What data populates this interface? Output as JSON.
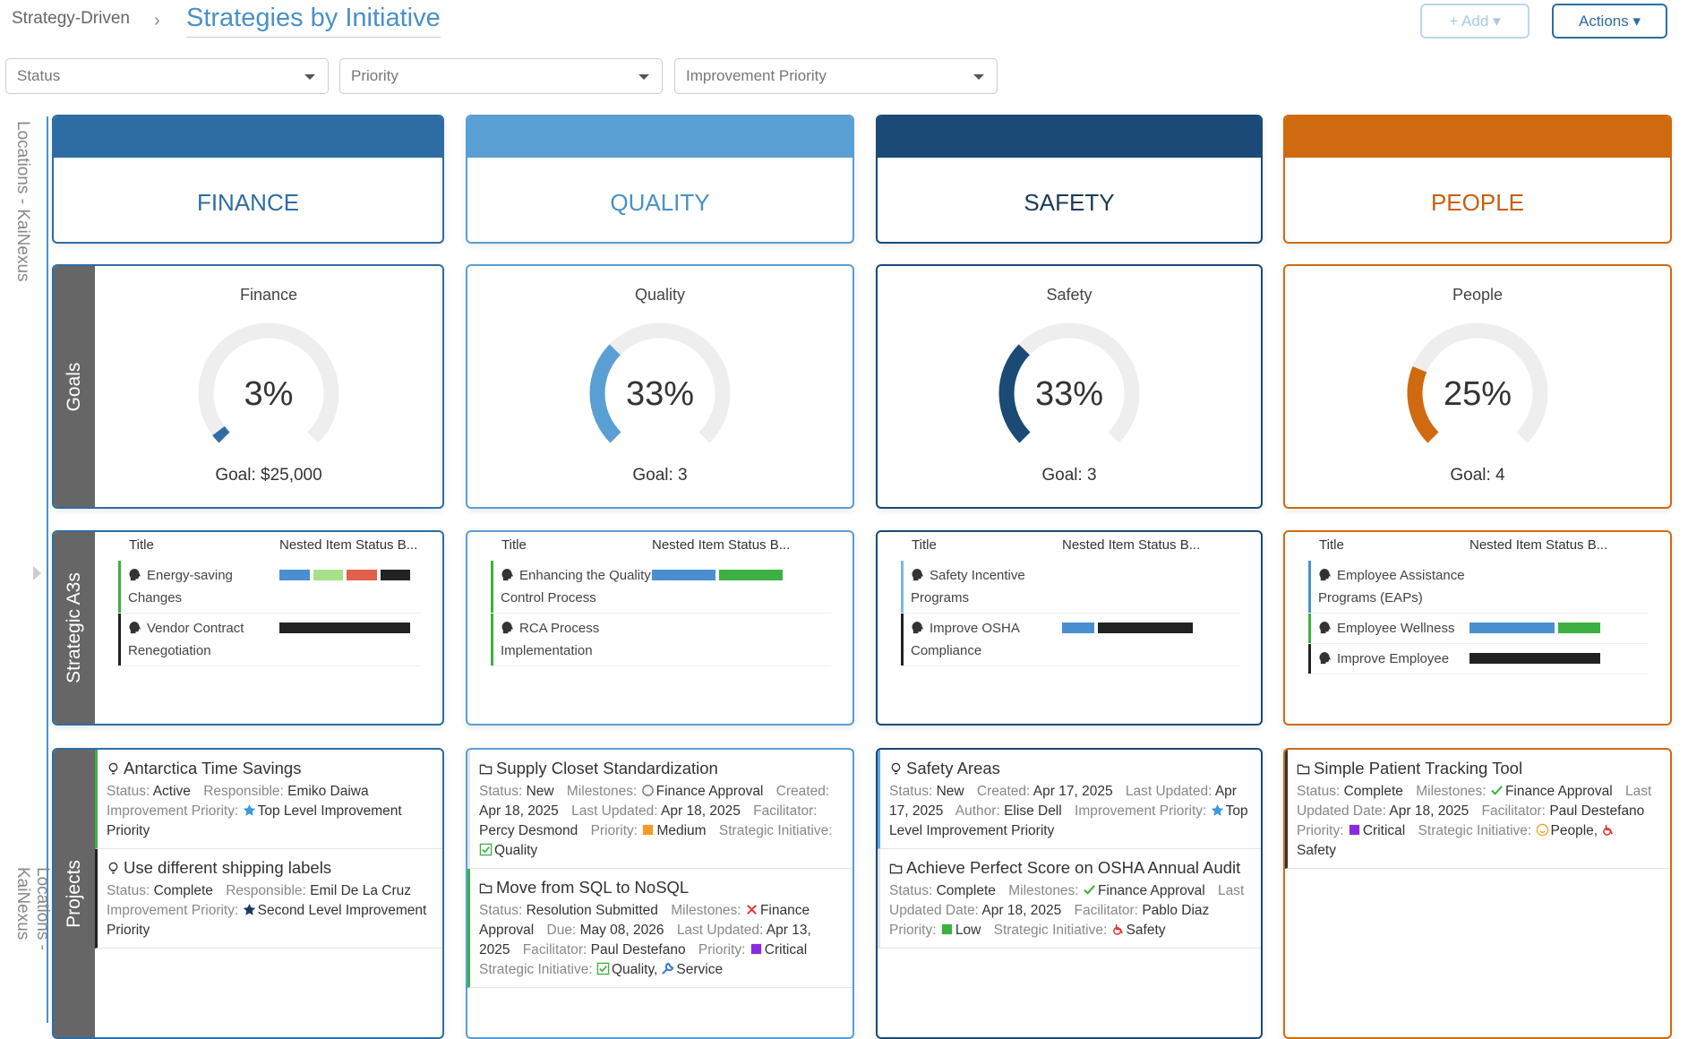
{
  "header": {
    "breadcrumb": "Strategy-Driven",
    "title": "Strategies by Initiative",
    "buttons": [
      "Add",
      "Actions"
    ]
  },
  "filters": [
    "Status",
    "Priority",
    "Improvement Priority"
  ],
  "side_label": "Locations - KaiNexus",
  "row_labels": [
    "Goals",
    "Strategic A3s",
    "Projects"
  ],
  "a3_headers": [
    "Title",
    "Nested Item Status B..."
  ],
  "columns": [
    {
      "name": "FINANCE",
      "color": "#2e6da4",
      "text_color": "#2e6da4",
      "goal": {
        "title": "Finance",
        "value": 3,
        "value_label": "3%",
        "goal": "Goal: $25,000"
      },
      "a3s": [
        {
          "title": "Energy-saving Changes",
          "border": "#3cb043",
          "segments": [
            {
              "color": "#4a90d0",
              "count": 1
            },
            {
              "color": "#a6e08a",
              "count": 1
            },
            {
              "color": "#e0604a",
              "count": 1
            },
            {
              "color": "#222222",
              "count": 1
            }
          ]
        },
        {
          "title": "Vendor Contract Renegotiation",
          "border": "#222222",
          "segments": [
            {
              "color": "#222222",
              "count": 1
            }
          ]
        }
      ],
      "projects": [
        {
          "icon": "bulb",
          "title": "Antarctica Time Savings",
          "border": "#3cb043",
          "fields": [
            {
              "label": "Status:",
              "value": [
                {
                  "text": "Active"
                }
              ]
            },
            {
              "label": "Responsible:",
              "value": [
                {
                  "text": "Emiko Daiwa"
                }
              ]
            },
            {
              "label": "Improvement Priority:",
              "value": [
                {
                  "icon": "star",
                  "color": "#3a9ae0",
                  "text": "Top Level Improvement Priority"
                }
              ]
            }
          ]
        },
        {
          "icon": "bulb",
          "title": "Use different shipping labels",
          "border": "#222222",
          "fields": [
            {
              "label": "Status:",
              "value": [
                {
                  "text": "Complete"
                }
              ]
            },
            {
              "label": "Responsible:",
              "value": [
                {
                  "text": "Emil De La Cruz"
                }
              ]
            },
            {
              "label": "Improvement Priority:",
              "value": [
                {
                  "icon": "star",
                  "color": "#1a3a66",
                  "text": "Second Level Improvement Priority"
                }
              ]
            }
          ]
        }
      ]
    },
    {
      "name": "QUALITY",
      "color": "#5a9fd4",
      "text_color": "#4a90c8",
      "goal": {
        "title": "Quality",
        "value": 33,
        "value_label": "33%",
        "goal": "Goal: 3"
      },
      "a3s": [
        {
          "title": "Enhancing the Quality Control Process",
          "border": "#3cb043",
          "segments": [
            {
              "color": "#4a90d0",
              "count": 1
            },
            {
              "color": "#3cb043",
              "count": 1
            }
          ]
        },
        {
          "title": "RCA Process Implementation",
          "border": "#3cb043",
          "segments": []
        }
      ],
      "projects": [
        {
          "icon": "folder",
          "title": "Supply Closet Standardization",
          "border": "#e4e4e4",
          "fields": [
            {
              "label": "Status:",
              "value": [
                {
                  "text": "New"
                }
              ]
            },
            {
              "label": "Milestones:",
              "value": [
                {
                  "icon": "circle",
                  "color": "#777777",
                  "text": "Finance Approval"
                }
              ]
            },
            {
              "label": "Created:",
              "value": [
                {
                  "text": "Apr 18, 2025"
                }
              ]
            },
            {
              "label": "Last Updated:",
              "value": [
                {
                  "text": "Apr 18, 2025"
                }
              ]
            },
            {
              "label": "Facilitator:",
              "value": [
                {
                  "text": "Percy Desmond"
                }
              ]
            },
            {
              "label": "Priority:",
              "value": [
                {
                  "icon": "square",
                  "color": "#f59a23",
                  "text": "Medium"
                }
              ]
            },
            {
              "label": "Strategic Initiative:",
              "value": [
                {
                  "icon": "check-box",
                  "color": "#3cb043",
                  "text": "Quality"
                }
              ]
            }
          ]
        },
        {
          "icon": "folder",
          "title": "Move from SQL to NoSQL",
          "border": "#3cb043",
          "fields": [
            {
              "label": "Status:",
              "value": [
                {
                  "text": "Resolution Submitted"
                }
              ]
            },
            {
              "label": "Milestones:",
              "value": [
                {
                  "icon": "x",
                  "color": "#e03030",
                  "text": "Finance Approval"
                }
              ]
            },
            {
              "label": "Due:",
              "value": [
                {
                  "text": "May 08, 2026"
                }
              ]
            },
            {
              "label": "Last Updated:",
              "value": [
                {
                  "text": "Apr 13, 2025"
                }
              ]
            },
            {
              "label": "Facilitator:",
              "value": [
                {
                  "text": "Paul Destefano"
                }
              ]
            },
            {
              "label": "Priority:",
              "value": [
                {
                  "icon": "square",
                  "color": "#8a2be2",
                  "text": "Critical"
                }
              ]
            },
            {
              "label": "Strategic Initiative:",
              "value": [
                {
                  "icon": "check-box",
                  "color": "#3cb043",
                  "text": "Quality,"
                },
                {
                  "icon": "wrench",
                  "color": "#3a7ad0",
                  "text": "Service"
                }
              ]
            }
          ]
        }
      ]
    },
    {
      "name": "SAFETY",
      "color": "#1a4a75",
      "text_color": "#1a3a5a",
      "goal": {
        "title": "Safety",
        "value": 33,
        "value_label": "33%",
        "goal": "Goal: 3"
      },
      "a3s": [
        {
          "title": "Safety Incentive Programs",
          "border": "#7ab8e8",
          "segments": []
        },
        {
          "title": "Improve OSHA Compliance",
          "border": "#222222",
          "segments": [
            {
              "color": "#4a90d0",
              "count": 1
            },
            {
              "color": "#222222",
              "count": 3
            }
          ]
        }
      ],
      "projects": [
        {
          "icon": "bulb",
          "title": "Safety Areas",
          "border": "#5aa8e0",
          "fields": [
            {
              "label": "Status:",
              "value": [
                {
                  "text": "New"
                }
              ]
            },
            {
              "label": "Created:",
              "value": [
                {
                  "text": "Apr 17, 2025"
                }
              ]
            },
            {
              "label": "Last Updated:",
              "value": [
                {
                  "text": "Apr 17, 2025"
                }
              ]
            },
            {
              "label": "Author:",
              "value": [
                {
                  "text": "Elise Dell"
                }
              ]
            },
            {
              "label": "Improvement Priority:",
              "value": [
                {
                  "icon": "star",
                  "color": "#3a9ae0",
                  "text": "Top Level Improvement Priority"
                }
              ]
            }
          ]
        },
        {
          "icon": "folder",
          "title": "Achieve Perfect Score on OSHA Annual Audit",
          "border": "#e4e4e4",
          "fields": [
            {
              "label": "Status:",
              "value": [
                {
                  "text": "Complete"
                }
              ]
            },
            {
              "label": "Milestones:",
              "value": [
                {
                  "icon": "check",
                  "color": "#3cb043",
                  "text": "Finance Approval"
                }
              ]
            },
            {
              "label": "Last Updated Date:",
              "value": [
                {
                  "text": "Apr 18, 2025"
                }
              ]
            },
            {
              "label": "Facilitator:",
              "value": [
                {
                  "text": "Pablo Diaz"
                }
              ]
            },
            {
              "label": "Priority:",
              "value": [
                {
                  "icon": "square",
                  "color": "#3cb043",
                  "text": "Low"
                }
              ]
            },
            {
              "label": "Strategic Initiative:",
              "value": [
                {
                  "icon": "wheelchair",
                  "color": "#e03030",
                  "text": "Safety"
                }
              ]
            }
          ]
        }
      ]
    },
    {
      "name": "PEOPLE",
      "color": "#d06a10",
      "text_color": "#c85f0a",
      "goal": {
        "title": "People",
        "value": 25,
        "value_label": "25%",
        "goal": "Goal: 4"
      },
      "a3s": [
        {
          "title": "Employee Assistance Programs (EAPs)",
          "border": "#4a90d0",
          "segments": []
        },
        {
          "title": "Employee Wellness",
          "border": "#3cb043",
          "segments": [
            {
              "color": "#4a90d0",
              "count": 2
            },
            {
              "color": "#3cb043",
              "count": 1
            }
          ]
        },
        {
          "title": "Improve Employee",
          "border": "#222222",
          "segments": [
            {
              "color": "#222222",
              "count": 1
            }
          ]
        }
      ],
      "projects": [
        {
          "icon": "folder",
          "title": "Simple Patient Tracking Tool",
          "border": "#333333",
          "fields": [
            {
              "label": "Status:",
              "value": [
                {
                  "text": "Complete"
                }
              ]
            },
            {
              "label": "Milestones:",
              "value": [
                {
                  "icon": "check",
                  "color": "#3cb043",
                  "text": "Finance Approval"
                }
              ]
            },
            {
              "label": "Last Updated Date:",
              "value": [
                {
                  "text": "Apr 18, 2025"
                }
              ]
            },
            {
              "label": "Facilitator:",
              "value": [
                {
                  "text": "Paul Destefano"
                }
              ]
            },
            {
              "label": "Priority:",
              "value": [
                {
                  "icon": "square",
                  "color": "#8a2be2",
                  "text": "Critical"
                }
              ]
            },
            {
              "label": "Strategic Initiative:",
              "value": [
                {
                  "icon": "smile",
                  "color": "#f0a020",
                  "text": "People,"
                },
                {
                  "icon": "wheelchair",
                  "color": "#e03030",
                  "text": "Safety"
                }
              ]
            }
          ]
        }
      ]
    }
  ]
}
